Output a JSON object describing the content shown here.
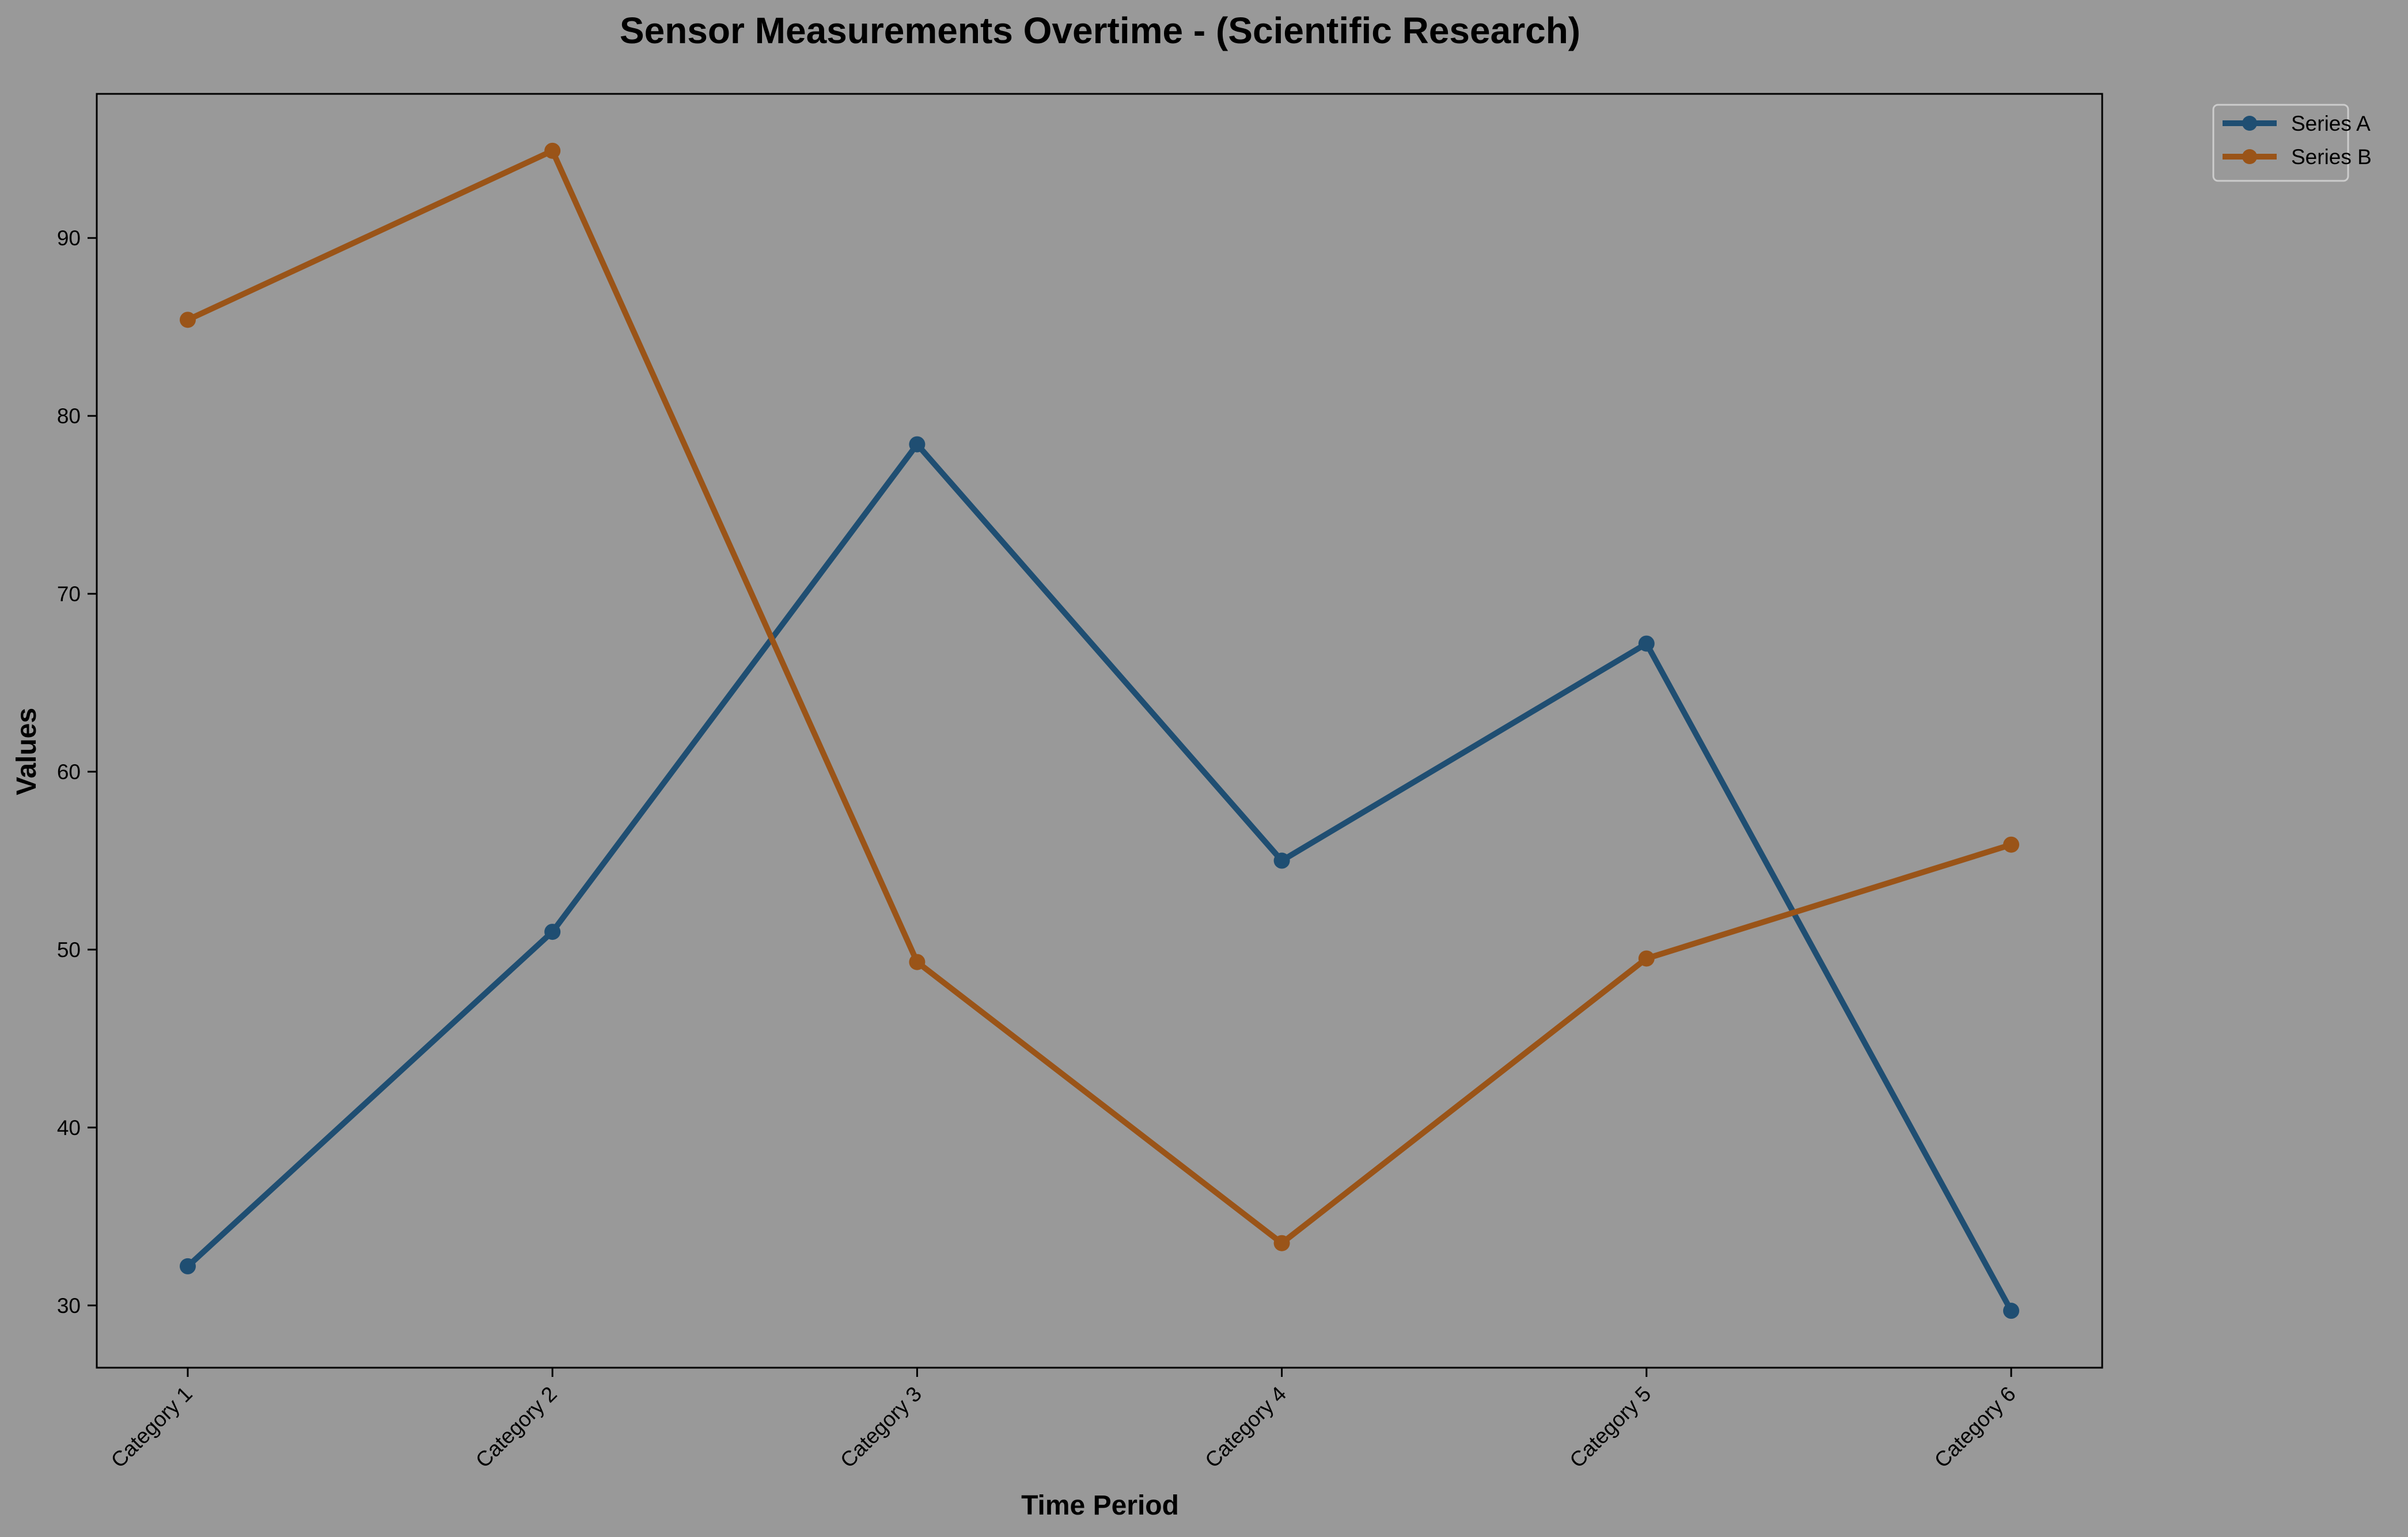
{
  "chart_data": {
    "type": "line",
    "title": "Sensor Measurements Overtime - (Scientific Research)",
    "xlabel": "Time Period",
    "ylabel": "Values",
    "categories": [
      "Category 1",
      "Category 2",
      "Category 3",
      "Category 4",
      "Category 5",
      "Category 6"
    ],
    "series": [
      {
        "name": "Series A",
        "color": "#1f4e72",
        "values": [
          32.2,
          51.0,
          78.4,
          55.0,
          67.2,
          29.7
        ]
      },
      {
        "name": "Series B",
        "color": "#9a5418",
        "values": [
          85.4,
          94.9,
          49.3,
          33.5,
          49.5,
          55.9
        ]
      }
    ],
    "ylim": [
      26.5,
      98.1
    ],
    "yticks": [
      30,
      40,
      50,
      60,
      70,
      80,
      90
    ],
    "grid": false,
    "legend_position": "top-right outside",
    "background": "#999999"
  }
}
